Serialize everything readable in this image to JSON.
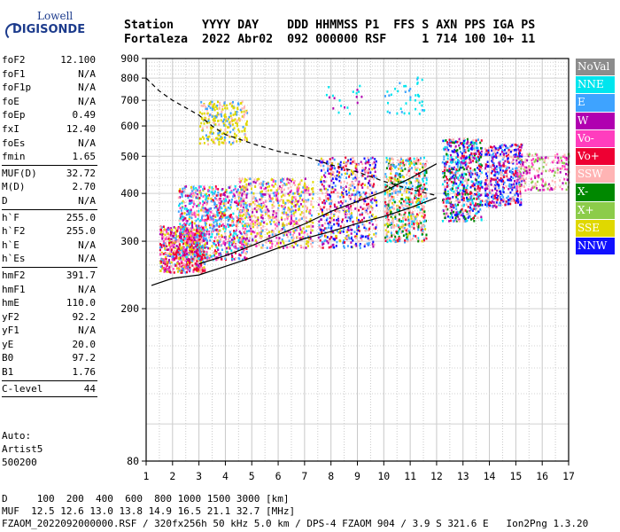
{
  "logo": {
    "line1": "Lowell",
    "line2": "DIGISONDE"
  },
  "header": {
    "labels": "Station    YYYY DAY    DDD HHMMSS P1  FFS S AXN PPS IGA PS",
    "values": "Fortaleza  2022 Abr02  092 000000 RSF     1 714 100 10+ 11"
  },
  "params": [
    {
      "k": "foF2",
      "v": "12.100"
    },
    {
      "k": "foF1",
      "v": "N/A"
    },
    {
      "k": "foF1p",
      "v": "N/A"
    },
    {
      "k": "foE",
      "v": "N/A"
    },
    {
      "k": "foEp",
      "v": "0.49"
    },
    {
      "k": "fxI",
      "v": "12.40"
    },
    {
      "k": "foEs",
      "v": "N/A"
    },
    {
      "k": "fmin",
      "v": "1.65"
    },
    {
      "sep": true
    },
    {
      "k": "MUF(D)",
      "v": "32.72"
    },
    {
      "k": "M(D)",
      "v": "2.70"
    },
    {
      "k": "D",
      "v": "N/A"
    },
    {
      "sep": true
    },
    {
      "k": "h`F",
      "v": "255.0"
    },
    {
      "k": "h`F2",
      "v": "255.0"
    },
    {
      "k": "h`E",
      "v": "N/A"
    },
    {
      "k": "h`Es",
      "v": "N/A"
    },
    {
      "sep": true
    },
    {
      "k": "hmF2",
      "v": "391.7"
    },
    {
      "k": "hmF1",
      "v": "N/A"
    },
    {
      "k": "hmE",
      "v": "110.0"
    },
    {
      "k": "yF2",
      "v": "92.2"
    },
    {
      "k": "yF1",
      "v": "N/A"
    },
    {
      "k": "yE",
      "v": "20.0"
    },
    {
      "k": "B0",
      "v": "97.2"
    },
    {
      "k": "B1",
      "v": "1.76"
    },
    {
      "sep": true
    },
    {
      "k": "C-level",
      "v": "44"
    },
    {
      "sep": true
    }
  ],
  "auto": [
    "Auto:",
    "Artist5",
    "500200"
  ],
  "legend": [
    {
      "label": "NoVal",
      "color": "#8c8c8c"
    },
    {
      "label": "NNE",
      "color": "#00e5ee"
    },
    {
      "label": "E",
      "color": "#3ea3ff"
    },
    {
      "label": "W",
      "color": "#b000b0"
    },
    {
      "label": "Vo-",
      "color": "#ff3dbe"
    },
    {
      "label": "Vo+",
      "color": "#ee0033"
    },
    {
      "label": "SSW",
      "color": "#ffb4b4"
    },
    {
      "label": "X-",
      "color": "#008800"
    },
    {
      "label": "X+",
      "color": "#8ccc4a"
    },
    {
      "label": "SSE",
      "color": "#e0d800"
    },
    {
      "label": "NNW",
      "color": "#1010ff"
    }
  ],
  "bottom": {
    "dline": "D     100  200  400  600  800 1000 1500 3000 [km]",
    "mufline": "MUF  12.5 12.6 13.0 13.8 14.9 16.5 21.1 32.7 [MHz]",
    "fileline": "FZAOM_2022092000000.RSF / 320fx256h 50 kHz 5.0 km / DPS-4 FZAOM 904 / 3.9 S 321.6 E   Ion2Png 1.3.20"
  },
  "chart_data": {
    "type": "scatter",
    "xlabel": "",
    "ylabel": "",
    "x_range": [
      1,
      17
    ],
    "y_axis": "logarithmic",
    "y_range": [
      80,
      900
    ],
    "x_ticks": [
      1,
      2,
      3,
      4,
      5,
      6,
      7,
      8,
      9,
      10,
      11,
      12,
      13,
      14,
      15,
      16,
      17
    ],
    "y_ticks": [
      80,
      200,
      300,
      400,
      500,
      600,
      700,
      800,
      900
    ],
    "grid": true,
    "legend_position": "right",
    "series": [
      {
        "name": "mufline",
        "color": "#000000",
        "points": [
          [
            1,
            800
          ],
          [
            1.5,
            740
          ],
          [
            2,
            700
          ],
          [
            3,
            640
          ],
          [
            3.5,
            600
          ],
          [
            4,
            570
          ],
          [
            5,
            540
          ],
          [
            6,
            515
          ],
          [
            7,
            500
          ],
          [
            8,
            475
          ],
          [
            9,
            455
          ],
          [
            10,
            430
          ],
          [
            11,
            410
          ],
          [
            12,
            395
          ]
        ]
      },
      {
        "name": "mufline",
        "color": "#000000",
        "points": [
          [
            1.2,
            230
          ],
          [
            2,
            240
          ],
          [
            3,
            245
          ],
          [
            4,
            258
          ],
          [
            5,
            272
          ],
          [
            6,
            288
          ],
          [
            7,
            305
          ],
          [
            8,
            318
          ],
          [
            9,
            334
          ],
          [
            10,
            348
          ],
          [
            11,
            367
          ],
          [
            12,
            390
          ]
        ]
      },
      {
        "name": "mufline",
        "color": "#000000",
        "points": [
          [
            3,
            262
          ],
          [
            4,
            275
          ],
          [
            5,
            292
          ],
          [
            6,
            312
          ],
          [
            7,
            333
          ],
          [
            8,
            359
          ],
          [
            9,
            381
          ],
          [
            10,
            405
          ],
          [
            11,
            438
          ],
          [
            12,
            478
          ]
        ]
      }
    ]
  }
}
